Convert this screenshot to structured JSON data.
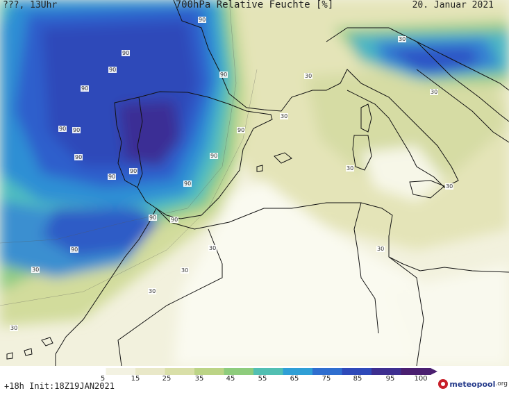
{
  "header": {
    "left": "???, 13Uhr",
    "title": "700hPa Relative Feuchte [%]",
    "date": "20. Januar 2021"
  },
  "footer": {
    "left": "+18h Init:18Z19JAN2021",
    "logo_text": "meteopool",
    "logo_suffix": ".org"
  },
  "legend": {
    "ticks": [
      "5",
      "15",
      "25",
      "35",
      "45",
      "55",
      "65",
      "75",
      "85",
      "95",
      "100"
    ],
    "colors": [
      "#ffffff",
      "#f3f2e2",
      "#e9e8c8",
      "#d9dfa8",
      "#bcd486",
      "#8ecc7c",
      "#52bfb2",
      "#2f9fd6",
      "#2f6ecf",
      "#2e49b9",
      "#3d2e8f",
      "#4a1f70"
    ]
  },
  "contour_labels": [
    {
      "text": "90"
    },
    {
      "text": "90"
    },
    {
      "text": "90"
    },
    {
      "text": "90"
    },
    {
      "text": "90"
    },
    {
      "text": "90"
    },
    {
      "text": "90"
    },
    {
      "text": "90"
    },
    {
      "text": "90"
    },
    {
      "text": "90"
    },
    {
      "text": "90"
    },
    {
      "text": "90"
    },
    {
      "text": "90"
    },
    {
      "text": "90"
    },
    {
      "text": "90"
    },
    {
      "text": "90"
    },
    {
      "text": "30"
    },
    {
      "text": "30"
    },
    {
      "text": "30"
    },
    {
      "text": "30"
    },
    {
      "text": "30"
    },
    {
      "text": "30"
    },
    {
      "text": "30"
    },
    {
      "text": "30"
    },
    {
      "text": "30"
    },
    {
      "text": "30"
    },
    {
      "text": "30"
    },
    {
      "text": "30"
    }
  ]
}
